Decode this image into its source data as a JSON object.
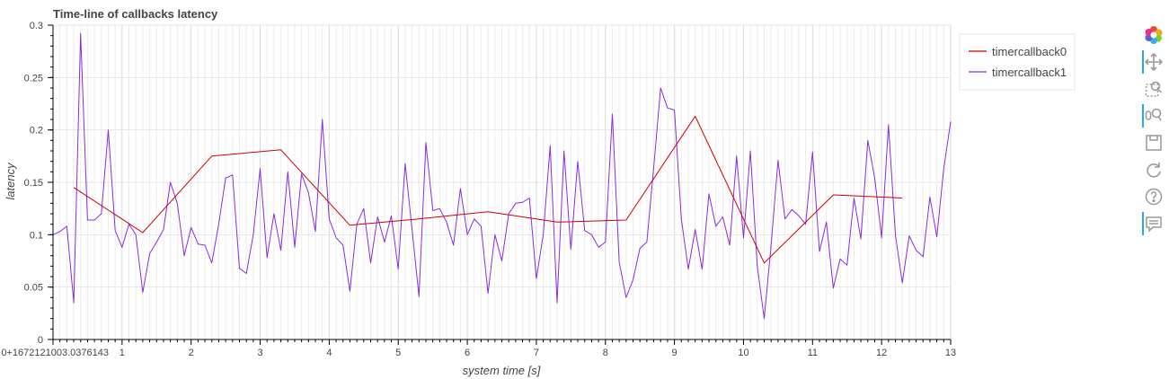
{
  "chart_data": {
    "type": "line",
    "title": "Time-line of callbacks latency",
    "xlabel": "system time [s]",
    "ylabel": "latency",
    "xlim": [
      0,
      13
    ],
    "ylim": [
      0,
      0.3
    ],
    "grid": true,
    "legend_position": "top-right",
    "x_tick_labels": [
      "0+1672121003.0376143",
      "1",
      "2",
      "3",
      "4",
      "5",
      "6",
      "7",
      "8",
      "9",
      "10",
      "11",
      "12",
      "13"
    ],
    "y_tick_labels": [
      "0",
      "0.05",
      "0.1",
      "0.15",
      "0.2",
      "0.25",
      "0.3"
    ],
    "series": [
      {
        "name": "timercallback0",
        "color": "#cc0000",
        "x": [
          0.3,
          1.3,
          2.3,
          3.3,
          4.3,
          5.3,
          6.3,
          7.3,
          8.3,
          9.3,
          10.3,
          11.3,
          12.3
        ],
        "y": [
          0.145,
          0.102,
          0.175,
          0.181,
          0.109,
          0.115,
          0.122,
          0.112,
          0.114,
          0.213,
          0.073,
          0.138,
          0.135
        ]
      },
      {
        "name": "timercallback1",
        "color": "#8a2be2",
        "x": [
          0,
          0.1,
          0.2,
          0.3,
          0.4,
          0.5,
          0.6,
          0.7,
          0.8,
          0.9,
          1.0,
          1.1,
          1.2,
          1.3,
          1.4,
          1.5,
          1.6,
          1.7,
          1.8,
          1.9,
          2.0,
          2.1,
          2.2,
          2.3,
          2.4,
          2.5,
          2.6,
          2.7,
          2.8,
          2.9,
          3.0,
          3.1,
          3.2,
          3.3,
          3.4,
          3.5,
          3.6,
          3.7,
          3.8,
          3.9,
          4.0,
          4.1,
          4.2,
          4.3,
          4.4,
          4.5,
          4.6,
          4.7,
          4.8,
          4.9,
          5.0,
          5.1,
          5.2,
          5.3,
          5.4,
          5.5,
          5.6,
          5.7,
          5.8,
          5.9,
          6.0,
          6.1,
          6.2,
          6.3,
          6.4,
          6.5,
          6.6,
          6.7,
          6.8,
          6.9,
          7.0,
          7.1,
          7.2,
          7.3,
          7.4,
          7.5,
          7.6,
          7.7,
          7.8,
          7.9,
          8.0,
          8.1,
          8.2,
          8.3,
          8.4,
          8.5,
          8.6,
          8.7,
          8.8,
          8.9,
          9.0,
          9.1,
          9.2,
          9.3,
          9.4,
          9.5,
          9.6,
          9.7,
          9.8,
          9.9,
          10.0,
          10.1,
          10.2,
          10.3,
          10.4,
          10.5,
          10.6,
          10.7,
          10.8,
          10.9,
          11.0,
          11.1,
          11.2,
          11.3,
          11.4,
          11.5,
          11.6,
          11.7,
          11.8,
          11.9,
          12.0,
          12.1,
          12.2,
          12.3,
          12.4,
          12.5,
          12.6,
          12.7,
          12.8,
          12.9,
          13.0
        ],
        "y": [
          0.1,
          0.103,
          0.108,
          0.035,
          0.292,
          0.114,
          0.114,
          0.12,
          0.2,
          0.104,
          0.088,
          0.11,
          0.1,
          0.045,
          0.082,
          0.093,
          0.105,
          0.15,
          0.13,
          0.08,
          0.107,
          0.091,
          0.09,
          0.073,
          0.11,
          0.154,
          0.157,
          0.068,
          0.063,
          0.1,
          0.163,
          0.078,
          0.12,
          0.085,
          0.16,
          0.088,
          0.158,
          0.14,
          0.103,
          0.21,
          0.115,
          0.097,
          0.09,
          0.046,
          0.11,
          0.125,
          0.073,
          0.117,
          0.093,
          0.118,
          0.067,
          0.168,
          0.105,
          0.041,
          0.188,
          0.123,
          0.125,
          0.112,
          0.09,
          0.144,
          0.1,
          0.115,
          0.108,
          0.044,
          0.1,
          0.075,
          0.12,
          0.13,
          0.131,
          0.135,
          0.058,
          0.1,
          0.185,
          0.035,
          0.18,
          0.086,
          0.17,
          0.104,
          0.1,
          0.088,
          0.093,
          0.215,
          0.074,
          0.04,
          0.057,
          0.087,
          0.093,
          0.165,
          0.24,
          0.221,
          0.219,
          0.115,
          0.067,
          0.105,
          0.067,
          0.139,
          0.108,
          0.117,
          0.09,
          0.175,
          0.097,
          0.18,
          0.07,
          0.02,
          0.09,
          0.171,
          0.115,
          0.124,
          0.118,
          0.11,
          0.179,
          0.084,
          0.112,
          0.049,
          0.077,
          0.071,
          0.135,
          0.096,
          0.19,
          0.154,
          0.097,
          0.205,
          0.1,
          0.054,
          0.099,
          0.085,
          0.079,
          0.136,
          0.098,
          0.163,
          0.208
        ]
      }
    ]
  },
  "toolbar": [
    {
      "name": "bokeh-logo-icon",
      "active": false
    },
    {
      "name": "pan-icon",
      "active": true
    },
    {
      "name": "box-zoom-icon",
      "active": false
    },
    {
      "name": "wheel-zoom-icon",
      "active": true
    },
    {
      "name": "save-icon",
      "active": false
    },
    {
      "name": "reset-icon",
      "active": false
    },
    {
      "name": "help-icon",
      "active": false
    },
    {
      "name": "hover-icon",
      "active": true
    }
  ]
}
